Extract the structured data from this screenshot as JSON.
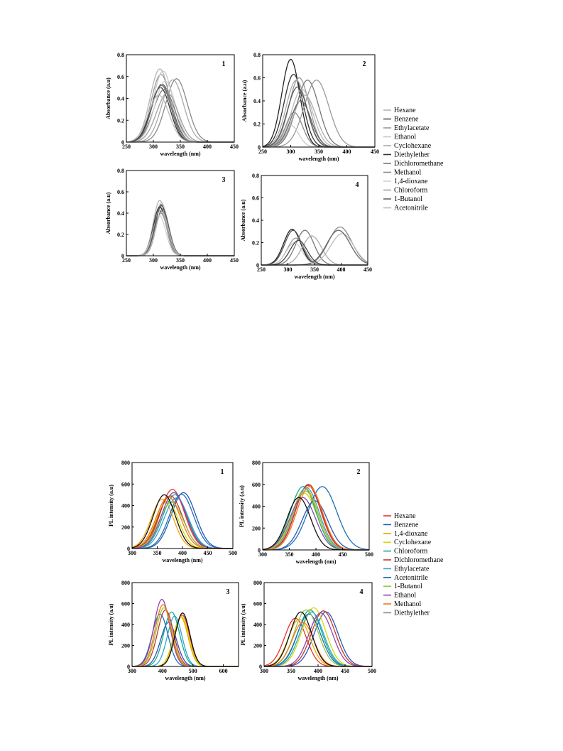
{
  "chart_data": [
    {
      "type": "line",
      "group": "abs",
      "panel_label": "1",
      "title": "",
      "xlabel": "wavelength (nm)",
      "ylabel": "Absorbance (a.u)",
      "xlim": [
        250,
        450
      ],
      "ylim": [
        0,
        0.8
      ],
      "xticks": [
        "250",
        "300",
        "350",
        "400",
        "450"
      ],
      "yticks": [
        "0",
        "0.2",
        "0.4",
        "0.6",
        "0.8"
      ],
      "grid": false,
      "series": [
        {
          "peak_nm": 312,
          "peak": 0.67,
          "width": 18,
          "color": "#b4b4b4"
        },
        {
          "peak_nm": 316,
          "peak": 0.53,
          "width": 19,
          "color": "#555555"
        },
        {
          "peak_nm": 314,
          "peak": 0.62,
          "width": 18,
          "color": "#9a9a9a"
        },
        {
          "peak_nm": 318,
          "peak": 0.65,
          "width": 18,
          "color": "#c8c8c8"
        },
        {
          "peak_nm": 336,
          "peak": 0.57,
          "width": 20,
          "color": "#aaaaaa"
        },
        {
          "peak_nm": 313,
          "peak": 0.5,
          "width": 18,
          "color": "#333333"
        },
        {
          "peak_nm": 320,
          "peak": 0.48,
          "width": 20,
          "color": "#7a7a7a"
        },
        {
          "peak_nm": 343,
          "peak": 0.58,
          "width": 20,
          "color": "#8a8a8a"
        },
        {
          "peak_nm": 322,
          "peak": 0.56,
          "width": 19,
          "color": "#d0d0d0"
        },
        {
          "peak_nm": 326,
          "peak": 0.45,
          "width": 20,
          "color": "#a0a0a0"
        },
        {
          "peak_nm": 315,
          "peak": 0.52,
          "width": 18,
          "color": "#666666"
        },
        {
          "peak_nm": 310,
          "peak": 0.43,
          "width": 19,
          "color": "#bbbbbb"
        }
      ]
    },
    {
      "type": "line",
      "group": "abs",
      "panel_label": "2",
      "title": "",
      "xlabel": "wavelength (nm)",
      "ylabel": "Absorbance (a.u)",
      "xlim": [
        250,
        450
      ],
      "ylim": [
        0,
        0.8
      ],
      "xticks": [
        "250",
        "300",
        "350",
        "400",
        "450"
      ],
      "yticks": [
        "0",
        "0.2",
        "0.4",
        "0.6",
        "0.8"
      ],
      "grid": false,
      "series": [
        {
          "peak_nm": 300,
          "peak": 0.76,
          "width": 16,
          "color": "#222222"
        },
        {
          "peak_nm": 305,
          "peak": 0.63,
          "width": 17,
          "color": "#333333"
        },
        {
          "peak_nm": 310,
          "peak": 0.58,
          "width": 18,
          "color": "#aaaaaa"
        },
        {
          "peak_nm": 315,
          "peak": 0.6,
          "width": 18,
          "color": "#999999"
        },
        {
          "peak_nm": 330,
          "peak": 0.58,
          "width": 20,
          "color": "#777777"
        },
        {
          "peak_nm": 346,
          "peak": 0.58,
          "width": 22,
          "color": "#9a9a9a"
        },
        {
          "peak_nm": 320,
          "peak": 0.5,
          "width": 19,
          "color": "#bbbbbb"
        },
        {
          "peak_nm": 300,
          "peak": 0.19,
          "width": 14,
          "color": "#c8c8c8"
        },
        {
          "peak_nm": 306,
          "peak": 0.3,
          "width": 15,
          "color": "#888888"
        },
        {
          "peak_nm": 318,
          "peak": 0.4,
          "width": 18,
          "color": "#666666"
        },
        {
          "peak_nm": 325,
          "peak": 0.45,
          "width": 20,
          "color": "#aaaaaa"
        },
        {
          "peak_nm": 312,
          "peak": 0.52,
          "width": 18,
          "color": "#555555"
        }
      ]
    },
    {
      "type": "line",
      "group": "abs",
      "panel_label": "3",
      "title": "",
      "xlabel": "wavelength (nm)",
      "ylabel": "Absorbance (a.u)",
      "xlim": [
        250,
        450
      ],
      "ylim": [
        0,
        0.8
      ],
      "xticks": [
        "250",
        "300",
        "350",
        "400",
        "450"
      ],
      "yticks": [
        "0",
        "0.2",
        "0.4",
        "0.6",
        "0.8"
      ],
      "grid": false,
      "series": [
        {
          "peak_nm": 312,
          "peak": 0.52,
          "width": 12,
          "color": "#b4b4b4"
        },
        {
          "peak_nm": 314,
          "peak": 0.48,
          "width": 12,
          "color": "#444444"
        },
        {
          "peak_nm": 313,
          "peak": 0.45,
          "width": 12,
          "color": "#888888"
        },
        {
          "peak_nm": 315,
          "peak": 0.5,
          "width": 12,
          "color": "#cccccc"
        },
        {
          "peak_nm": 316,
          "peak": 0.42,
          "width": 12,
          "color": "#999999"
        },
        {
          "peak_nm": 312,
          "peak": 0.46,
          "width": 12,
          "color": "#333333"
        },
        {
          "peak_nm": 314,
          "peak": 0.4,
          "width": 12,
          "color": "#777777"
        },
        {
          "peak_nm": 317,
          "peak": 0.44,
          "width": 12,
          "color": "#666666"
        },
        {
          "peak_nm": 311,
          "peak": 0.38,
          "width": 12,
          "color": "#d0d0d0"
        },
        {
          "peak_nm": 313,
          "peak": 0.43,
          "width": 12,
          "color": "#aaaaaa"
        },
        {
          "peak_nm": 315,
          "peak": 0.47,
          "width": 12,
          "color": "#555555"
        },
        {
          "peak_nm": 316,
          "peak": 0.41,
          "width": 12,
          "color": "#bbbbbb"
        }
      ]
    },
    {
      "type": "line",
      "group": "abs",
      "panel_label": "4",
      "title": "",
      "xlabel": "wavelength (nm)",
      "ylabel": "Absorbance (a.u)",
      "xlim": [
        250,
        450
      ],
      "ylim": [
        0,
        0.8
      ],
      "xticks": [
        "250",
        "300",
        "350",
        "400",
        "450"
      ],
      "yticks": [
        "0",
        "0.2",
        "0.4",
        "0.6",
        "0.8"
      ],
      "grid": false,
      "series": [
        {
          "peak_nm": 308,
          "peak": 0.32,
          "width": 16,
          "color": "#222222"
        },
        {
          "peak_nm": 310,
          "peak": 0.31,
          "width": 16,
          "color": "#555555"
        },
        {
          "peak_nm": 315,
          "peak": 0.24,
          "width": 16,
          "color": "#999999"
        },
        {
          "peak_nm": 332,
          "peak": 0.31,
          "width": 17,
          "color": "#777777"
        },
        {
          "peak_nm": 345,
          "peak": 0.26,
          "width": 18,
          "color": "#aaaaaa"
        },
        {
          "peak_nm": 398,
          "peak": 0.34,
          "width": 22,
          "color": "#888888"
        },
        {
          "peak_nm": 402,
          "peak": 0.28,
          "width": 22,
          "color": "#bbbbbb"
        },
        {
          "peak_nm": 395,
          "peak": 0.31,
          "width": 22,
          "color": "#666666"
        },
        {
          "peak_nm": 312,
          "peak": 0.2,
          "width": 15,
          "color": "#cccccc"
        },
        {
          "peak_nm": 320,
          "peak": 0.22,
          "width": 16,
          "color": "#444444"
        }
      ]
    },
    {
      "type": "line",
      "group": "pl",
      "panel_label": "1",
      "title": "",
      "xlabel": "wavelength (nm)",
      "ylabel": "PL intensity (a.u)",
      "xlim": [
        300,
        500
      ],
      "ylim": [
        0,
        800
      ],
      "xticks": [
        "300",
        "350",
        "400",
        "450",
        "500"
      ],
      "yticks": [
        "0",
        "200",
        "400",
        "600",
        "800"
      ],
      "grid": false,
      "series": [
        {
          "peak_nm": 380,
          "peak": 550,
          "width": 24,
          "color": "#e8312a"
        },
        {
          "peak_nm": 402,
          "peak": 520,
          "width": 24,
          "color": "#2557b5"
        },
        {
          "peak_nm": 360,
          "peak": 460,
          "width": 22,
          "color": "#f0a500"
        },
        {
          "peak_nm": 370,
          "peak": 440,
          "width": 22,
          "color": "#d8d800"
        },
        {
          "peak_nm": 385,
          "peak": 500,
          "width": 24,
          "color": "#1aa889"
        },
        {
          "peak_nm": 376,
          "peak": 490,
          "width": 24,
          "color": "#c0392b"
        },
        {
          "peak_nm": 388,
          "peak": 470,
          "width": 24,
          "color": "#2ba6d6"
        },
        {
          "peak_nm": 398,
          "peak": 505,
          "width": 24,
          "color": "#1f6fb2"
        },
        {
          "peak_nm": 378,
          "peak": 430,
          "width": 24,
          "color": "#9bc53d"
        },
        {
          "peak_nm": 383,
          "peak": 520,
          "width": 24,
          "color": "#8e44ad"
        },
        {
          "peak_nm": 372,
          "peak": 480,
          "width": 24,
          "color": "#f07818"
        },
        {
          "peak_nm": 364,
          "peak": 500,
          "width": 22,
          "color": "#111111"
        }
      ]
    },
    {
      "type": "line",
      "group": "pl",
      "panel_label": "2",
      "title": "",
      "xlabel": "wavelength (nm)",
      "ylabel": "PL intensity (a.u)",
      "xlim": [
        300,
        500
      ],
      "ylim": [
        0,
        800
      ],
      "xticks": [
        "300",
        "350",
        "400",
        "450",
        "500"
      ],
      "yticks": [
        "0",
        "200",
        "400",
        "600",
        "800"
      ],
      "grid": false,
      "series": [
        {
          "peak_nm": 385,
          "peak": 590,
          "width": 24,
          "color": "#e8312a"
        },
        {
          "peak_nm": 398,
          "peak": 450,
          "width": 24,
          "color": "#2557b5"
        },
        {
          "peak_nm": 380,
          "peak": 560,
          "width": 24,
          "color": "#f0a500"
        },
        {
          "peak_nm": 378,
          "peak": 520,
          "width": 24,
          "color": "#d8d800"
        },
        {
          "peak_nm": 376,
          "peak": 580,
          "width": 24,
          "color": "#1aa889"
        },
        {
          "peak_nm": 386,
          "peak": 600,
          "width": 24,
          "color": "#c0392b"
        },
        {
          "peak_nm": 382,
          "peak": 570,
          "width": 24,
          "color": "#2ba6d6"
        },
        {
          "peak_nm": 412,
          "peak": 580,
          "width": 27,
          "color": "#1f6fb2"
        },
        {
          "peak_nm": 380,
          "peak": 540,
          "width": 24,
          "color": "#9bc53d"
        },
        {
          "peak_nm": 375,
          "peak": 480,
          "width": 24,
          "color": "#8e44ad"
        },
        {
          "peak_nm": 388,
          "peak": 580,
          "width": 24,
          "color": "#f07818"
        },
        {
          "peak_nm": 368,
          "peak": 480,
          "width": 22,
          "color": "#111111"
        }
      ]
    },
    {
      "type": "line",
      "group": "pl",
      "panel_label": "3",
      "title": "",
      "xlabel": "wavelength (nm)",
      "ylabel": "PL intensity (a.u)",
      "xlim": [
        300,
        650
      ],
      "ylim": [
        0,
        800
      ],
      "xticks": [
        "300",
        "400",
        "500",
        "600"
      ],
      "yticks": [
        "0",
        "200",
        "400",
        "600",
        "800"
      ],
      "grid": false,
      "series": [
        {
          "peak_nm": 465,
          "peak": 490,
          "width": 24,
          "color": "#e8312a"
        },
        {
          "peak_nm": 420,
          "peak": 420,
          "width": 26,
          "color": "#2557b5"
        },
        {
          "peak_nm": 460,
          "peak": 470,
          "width": 24,
          "color": "#f0a500"
        },
        {
          "peak_nm": 462,
          "peak": 480,
          "width": 24,
          "color": "#d8d800"
        },
        {
          "peak_nm": 430,
          "peak": 520,
          "width": 26,
          "color": "#1aa889"
        },
        {
          "peak_nm": 410,
          "peak": 540,
          "width": 26,
          "color": "#c0392b"
        },
        {
          "peak_nm": 440,
          "peak": 480,
          "width": 24,
          "color": "#2ba6d6"
        },
        {
          "peak_nm": 392,
          "peak": 500,
          "width": 26,
          "color": "#1f6fb2"
        },
        {
          "peak_nm": 405,
          "peak": 560,
          "width": 26,
          "color": "#9bc53d"
        },
        {
          "peak_nm": 398,
          "peak": 640,
          "width": 26,
          "color": "#8e44ad"
        },
        {
          "peak_nm": 402,
          "peak": 590,
          "width": 26,
          "color": "#f07818"
        },
        {
          "peak_nm": 466,
          "peak": 510,
          "width": 24,
          "color": "#111111"
        }
      ]
    },
    {
      "type": "line",
      "group": "pl",
      "panel_label": "4",
      "title": "",
      "xlabel": "wavelength (nm)",
      "ylabel": "PL intensity (a.u)",
      "xlim": [
        300,
        500
      ],
      "ylim": [
        0,
        800
      ],
      "xticks": [
        "300",
        "350",
        "400",
        "450",
        "500"
      ],
      "yticks": [
        "0",
        "200",
        "400",
        "600",
        "800"
      ],
      "grid": false,
      "series": [
        {
          "peak_nm": 358,
          "peak": 460,
          "width": 20,
          "color": "#e8312a"
        },
        {
          "peak_nm": 415,
          "peak": 520,
          "width": 22,
          "color": "#2557b5"
        },
        {
          "peak_nm": 365,
          "peak": 450,
          "width": 20,
          "color": "#f0a500"
        },
        {
          "peak_nm": 392,
          "peak": 560,
          "width": 22,
          "color": "#d8d800"
        },
        {
          "peak_nm": 385,
          "peak": 540,
          "width": 22,
          "color": "#1aa889"
        },
        {
          "peak_nm": 410,
          "peak": 530,
          "width": 22,
          "color": "#c0392b"
        },
        {
          "peak_nm": 388,
          "peak": 520,
          "width": 22,
          "color": "#2ba6d6"
        },
        {
          "peak_nm": 383,
          "peak": 500,
          "width": 22,
          "color": "#1f6fb2"
        },
        {
          "peak_nm": 378,
          "peak": 540,
          "width": 22,
          "color": "#9bc53d"
        },
        {
          "peak_nm": 405,
          "peak": 510,
          "width": 22,
          "color": "#8e44ad"
        },
        {
          "peak_nm": 372,
          "peak": 420,
          "width": 20,
          "color": "#f07818"
        },
        {
          "peak_nm": 368,
          "peak": 520,
          "width": 20,
          "color": "#111111"
        }
      ]
    }
  ],
  "legend_abs": [
    {
      "label": "Hexane",
      "color": "#b4b4b4"
    },
    {
      "label": "Benzene",
      "color": "#555555"
    },
    {
      "label": "Ethylacetate",
      "color": "#9a9a9a"
    },
    {
      "label": "Ethanol",
      "color": "#c8c8c8"
    },
    {
      "label": "Cyclohexane",
      "color": "#aaaaaa"
    },
    {
      "label": "Diethylether",
      "color": "#333333"
    },
    {
      "label": "Dichloromethane",
      "color": "#7a7a7a"
    },
    {
      "label": "Methanol",
      "color": "#8a8a8a"
    },
    {
      "label": "1,4-dioxane",
      "color": "#d0d0d0"
    },
    {
      "label": "Chloroform",
      "color": "#a0a0a0"
    },
    {
      "label": "1-Butanol",
      "color": "#666666"
    },
    {
      "label": "Acetonitrile",
      "color": "#bbbbbb"
    }
  ],
  "legend_pl": [
    {
      "label": "Hexane",
      "color": "#e8312a"
    },
    {
      "label": "Benzene",
      "color": "#2557b5"
    },
    {
      "label": "1,4-dioxane",
      "color": "#f0a500"
    },
    {
      "label": "Cyclohexane",
      "color": "#d8d800"
    },
    {
      "label": "Chloroform",
      "color": "#1aa889"
    },
    {
      "label": "Dichloromethane",
      "color": "#c0392b"
    },
    {
      "label": "Ethylacetate",
      "color": "#2ba6d6"
    },
    {
      "label": "Acetonitrile",
      "color": "#1f6fb2"
    },
    {
      "label": "1-Butanol",
      "color": "#9bc53d"
    },
    {
      "label": "Ethanol",
      "color": "#8e44ad"
    },
    {
      "label": "Methanol",
      "color": "#f07818"
    },
    {
      "label": "Diethylether",
      "color": "#888888"
    }
  ]
}
